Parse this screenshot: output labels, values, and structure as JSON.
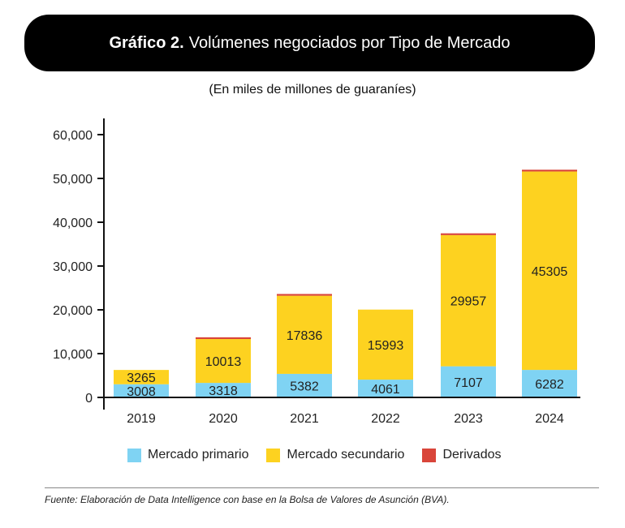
{
  "title_bold": "Gráfico 2.",
  "title_rest": "Volúmenes negociados por Tipo de Mercado",
  "source": "Fuente: Elaboración de Data Intelligence con base en la Bolsa de Valores de Asunción (BVA).",
  "chart_data": {
    "type": "bar",
    "stacked": true,
    "title": "Gráfico 2. Volúmenes negociados por Tipo de Mercado",
    "subtitle": "(En miles de millones de guaraníes)",
    "categories": [
      "2019",
      "2020",
      "2021",
      "2022",
      "2023",
      "2024"
    ],
    "series": [
      {
        "name": "Mercado primario",
        "color": "#7fd3f3",
        "values": [
          3008,
          3318,
          5382,
          4061,
          7107,
          6282
        ],
        "labeled": true
      },
      {
        "name": "Mercado secundario",
        "color": "#fdd220",
        "values": [
          3265,
          10013,
          17836,
          15993,
          29957,
          45305
        ],
        "labeled": true
      },
      {
        "name": "Derivados",
        "color": "#d9453a",
        "values": [
          0,
          400,
          400,
          0,
          400,
          400
        ],
        "labeled": false
      }
    ],
    "ylim": [
      0,
      60000
    ],
    "yticks": [
      0,
      10000,
      20000,
      30000,
      40000,
      50000,
      60000
    ],
    "ytick_labels": [
      "0",
      "10,000",
      "20,000",
      "30,000",
      "40,000",
      "50,000",
      "60,000"
    ],
    "legend": "bottom"
  }
}
